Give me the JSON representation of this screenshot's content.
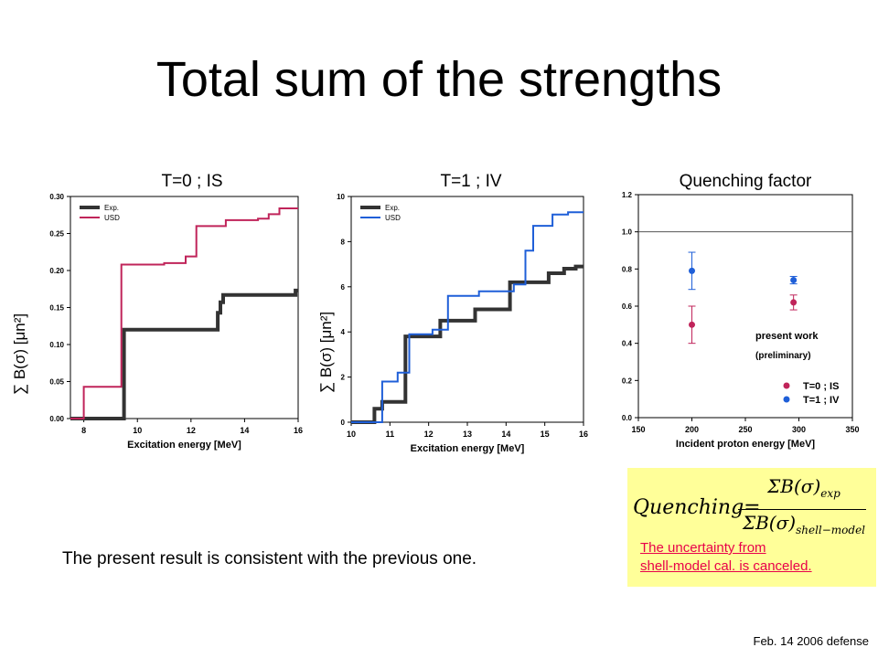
{
  "slide": {
    "title": "Total sum of the strengths",
    "note": "The present result is consistent with the previous one.",
    "footer": "Feb. 14 2006 defense",
    "formula": {
      "lhs": "Quenching=",
      "numerator": "ΣB(σ)",
      "numerator_sub": "exp",
      "denominator": "ΣB(σ)",
      "denominator_sub": "shell−model"
    },
    "uncertainty_line1": "The uncertainty from",
    "uncertainty_line2": "shell-model cal. is canceled.",
    "colors": {
      "exp": "#333333",
      "usd_is": "#c0245a",
      "usd_iv": "#1f5fd8",
      "note_red": "#e8004a",
      "box": "#ffff99"
    }
  },
  "chart_data": [
    {
      "type": "line",
      "panel_title": "T=0 ; IS",
      "ylabel": "∑ B(σ) [μn²]",
      "xlabel": "Excitation energy [MeV]",
      "xlim": [
        7.5,
        16
      ],
      "ylim": [
        0,
        0.3
      ],
      "xticks": [
        8,
        10,
        12,
        14,
        16
      ],
      "yticks": [
        0.0,
        0.05,
        0.1,
        0.15,
        0.2,
        0.25,
        0.3
      ],
      "ytick_labels": [
        "0.00",
        "0.05",
        "0.10",
        "0.15",
        "0.20",
        "0.25",
        "0.30"
      ],
      "xtick_labels": [
        "8",
        "10",
        "12",
        "14",
        "16"
      ],
      "legend": [
        "Exp.",
        "USD"
      ],
      "series": [
        {
          "name": "Exp.",
          "color": "#333333",
          "width": 4,
          "x": [
            7.5,
            9.5,
            9.5,
            13.0,
            13.0,
            13.1,
            13.1,
            13.2,
            13.2,
            15.9,
            15.9,
            16.0
          ],
          "y": [
            0.0,
            0.0,
            0.12,
            0.12,
            0.143,
            0.143,
            0.157,
            0.157,
            0.167,
            0.167,
            0.173,
            0.173
          ]
        },
        {
          "name": "USD",
          "color": "#c0245a",
          "width": 2,
          "x": [
            7.5,
            8.0,
            8.0,
            9.4,
            9.4,
            11.0,
            11.0,
            11.8,
            11.8,
            12.2,
            12.2,
            13.3,
            13.3,
            14.5,
            14.5,
            14.9,
            14.9,
            15.3,
            15.3,
            16.0
          ],
          "y": [
            0.0,
            0.0,
            0.043,
            0.043,
            0.208,
            0.208,
            0.21,
            0.21,
            0.219,
            0.219,
            0.26,
            0.26,
            0.268,
            0.268,
            0.27,
            0.27,
            0.276,
            0.276,
            0.284,
            0.284
          ]
        }
      ]
    },
    {
      "type": "line",
      "panel_title": "T=1 ; IV",
      "ylabel": "∑ B(σ) [μn²]",
      "xlabel": "Excitation energy [MeV]",
      "xlim": [
        10,
        16
      ],
      "ylim": [
        0,
        10
      ],
      "xticks": [
        10,
        11,
        12,
        13,
        14,
        15,
        16
      ],
      "yticks": [
        0,
        2,
        4,
        6,
        8,
        10
      ],
      "ytick_labels": [
        "0",
        "2",
        "4",
        "6",
        "8",
        "10"
      ],
      "xtick_labels": [
        "10",
        "11",
        "12",
        "13",
        "14",
        "15",
        "16"
      ],
      "legend": [
        "Exp.",
        "USD"
      ],
      "series": [
        {
          "name": "Exp.",
          "color": "#333333",
          "width": 4,
          "x": [
            10,
            10.6,
            10.6,
            10.8,
            10.8,
            11.4,
            11.4,
            12.3,
            12.3,
            13.2,
            13.2,
            14.1,
            14.1,
            15.1,
            15.1,
            15.5,
            15.5,
            15.8,
            15.8,
            16.0
          ],
          "y": [
            0,
            0,
            0.6,
            0.6,
            0.9,
            0.9,
            3.8,
            3.8,
            4.5,
            4.5,
            5.0,
            5.0,
            6.2,
            6.2,
            6.6,
            6.6,
            6.8,
            6.8,
            6.9,
            6.9
          ]
        },
        {
          "name": "USD",
          "color": "#1f5fd8",
          "width": 2,
          "x": [
            10,
            10.8,
            10.8,
            11.2,
            11.2,
            11.5,
            11.5,
            12.1,
            12.1,
            12.5,
            12.5,
            13.3,
            13.3,
            14.2,
            14.2,
            14.5,
            14.5,
            14.7,
            14.7,
            15.2,
            15.2,
            15.6,
            15.6,
            16.0
          ],
          "y": [
            0,
            0,
            1.8,
            1.8,
            2.2,
            2.2,
            3.9,
            3.9,
            4.1,
            4.1,
            5.6,
            5.6,
            5.8,
            5.8,
            6.1,
            6.1,
            7.6,
            7.6,
            8.7,
            8.7,
            9.2,
            9.2,
            9.3,
            9.3
          ]
        }
      ]
    },
    {
      "type": "scatter",
      "panel_title": "Quenching factor",
      "xlabel": "Incident proton energy [MeV]",
      "xlim": [
        150,
        350
      ],
      "ylim": [
        0,
        1.2
      ],
      "xticks": [
        150,
        200,
        250,
        300,
        350
      ],
      "yticks": [
        0.0,
        0.2,
        0.4,
        0.6,
        0.8,
        1.0,
        1.2
      ],
      "ytick_labels": [
        "0.0",
        "0.2",
        "0.4",
        "0.6",
        "0.8",
        "1.0",
        "1.2"
      ],
      "xtick_labels": [
        "150",
        "200",
        "250",
        "300",
        "350"
      ],
      "reference_line": 1.0,
      "annotation_1": "present work",
      "annotation_2": "(preliminary)",
      "legend": [
        "T=0 ; IS",
        "T=1 ; IV"
      ],
      "series": [
        {
          "name": "T=0 ; IS",
          "color": "#c0245a",
          "x": [
            200,
            295
          ],
          "y": [
            0.5,
            0.62
          ],
          "err": [
            0.1,
            0.04
          ]
        },
        {
          "name": "T=1 ; IV",
          "color": "#1f5fd8",
          "x": [
            200,
            295
          ],
          "y": [
            0.79,
            0.74
          ],
          "err": [
            0.1,
            0.02
          ]
        }
      ]
    }
  ]
}
